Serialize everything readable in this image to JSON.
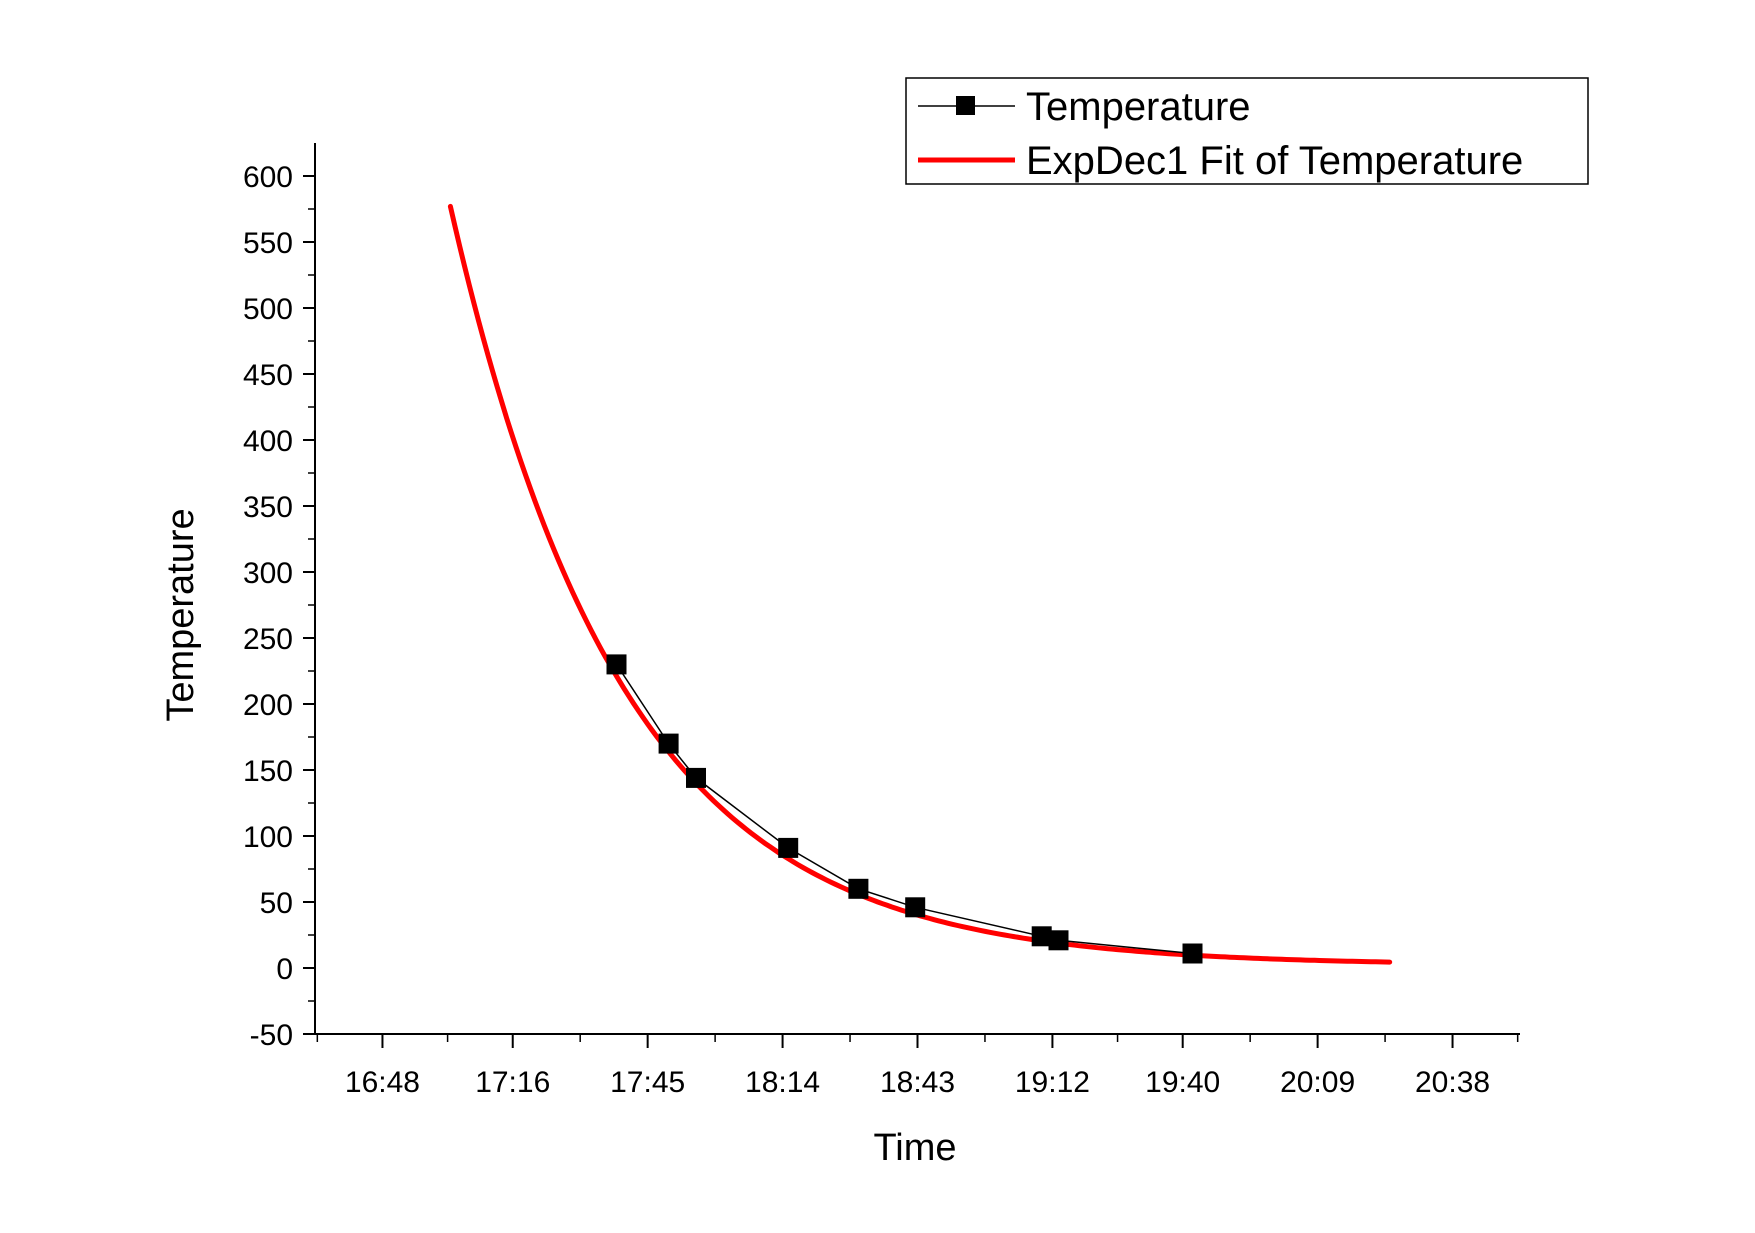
{
  "chart_data": {
    "type": "scatter",
    "title": "",
    "xlabel": "Time",
    "ylabel": "Temperature",
    "x_ticks": [
      "16:48",
      "17:16",
      "17:45",
      "18:14",
      "18:43",
      "19:12",
      "19:40",
      "20:09",
      "20:38"
    ],
    "x_tick_minutes": [
      1008,
      1036,
      1065,
      1094,
      1123,
      1152,
      1180,
      1209,
      1238
    ],
    "xlim_minutes": [
      993.5,
      1252.5
    ],
    "ylim": [
      -50,
      600
    ],
    "y_ticks": [
      -50,
      0,
      50,
      100,
      150,
      200,
      250,
      300,
      350,
      400,
      450,
      500,
      550,
      600
    ],
    "grid": false,
    "legend": "top-right",
    "series": [
      {
        "name": "Temperature",
        "kind": "scatter",
        "color": "#000000",
        "x_minutes": [
          1058.3,
          1069.5,
          1075.4,
          1095.2,
          1110.3,
          1122.5,
          1149.7,
          1153.3,
          1182.1
        ],
        "y": [
          230,
          170,
          144,
          91,
          60,
          46,
          24,
          21,
          11
        ]
      },
      {
        "name": "ExpDec1 Fit of Temperature",
        "kind": "line",
        "color": "#ff0000",
        "model": "y = A1*exp(-(x - x0)/t1) + y0",
        "x0": 1022.6,
        "A1": 575,
        "t1": 37.0,
        "y0": 2.0,
        "x_start_minutes": 1022.6,
        "x_end_minutes": 1224.5
      }
    ]
  }
}
